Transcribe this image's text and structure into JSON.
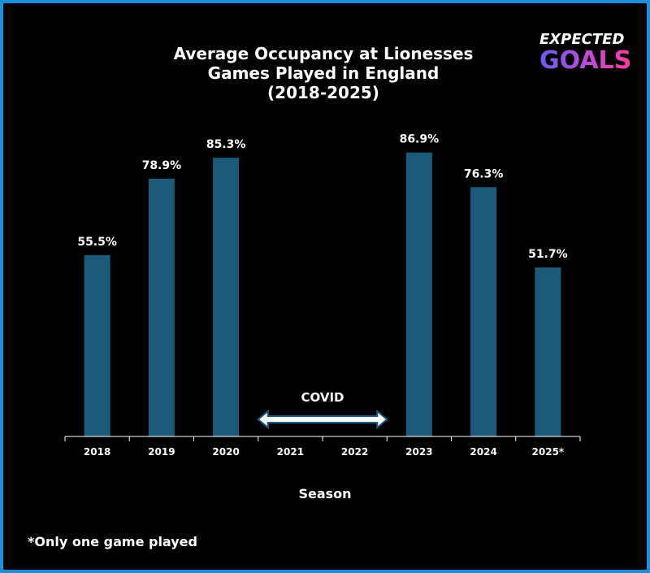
{
  "chart_data": {
    "type": "bar",
    "title_lines": [
      "Average Occupancy at Lionesses",
      "Games Played in England",
      "(2018-2025)"
    ],
    "categories": [
      "2018",
      "2019",
      "2020",
      "2021",
      "2022",
      "2023",
      "2024",
      "2025*"
    ],
    "values": [
      55.5,
      78.9,
      85.3,
      null,
      null,
      86.9,
      76.3,
      51.7
    ],
    "data_labels": [
      "55.5%",
      "78.9%",
      "85.3%",
      "",
      "",
      "86.9%",
      "76.3%",
      "51.7%"
    ],
    "xlabel": "Season",
    "ylabel": "",
    "ylim": [
      0,
      100
    ],
    "grid": false,
    "bar_color": "#1d5a7a",
    "annotation": {
      "label": "COVID",
      "span": [
        "2021",
        "2022"
      ]
    },
    "footnote": "*Only one game played"
  },
  "logo": {
    "top": "EXPECTED",
    "bottom": "GOALS",
    "gradient_colors": [
      "#6a5cf0",
      "#c04bd8",
      "#ff3b9a"
    ]
  },
  "colors": {
    "background": "#000000",
    "border": "#1a8fd9",
    "text": "#ffffff"
  }
}
